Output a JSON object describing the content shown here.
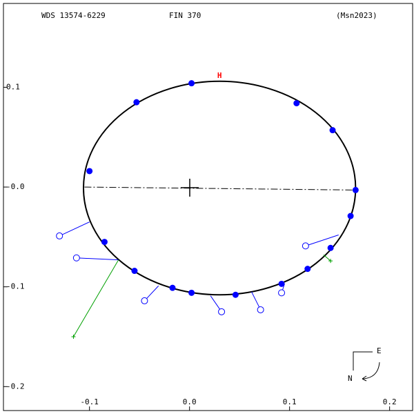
{
  "chart_data": {
    "type": "orbit",
    "title": "WDS 13574-6229",
    "subtitle": "FIN 370",
    "reference": "(Msn2023)",
    "periastron_label": "H",
    "compass": {
      "east": "E",
      "north": "N"
    },
    "xlim": [
      -0.186,
      0.223
    ],
    "ylim": [
      -0.224,
      0.184
    ],
    "xticks": [
      -0.1,
      {
        "value": 0,
        "label": "0.0"
      },
      0.1,
      0.2
    ],
    "yticks": [
      0.1,
      {
        "value": 0,
        "label": "-0.0"
      },
      -0.1,
      -0.2
    ],
    "orbit": {
      "center_x": 0.03,
      "center_y": -0.001,
      "semi_x": 0.136,
      "semi_y": 0.107,
      "color": "#000000"
    },
    "line_of_nodes": {
      "x": [
        -0.105,
        0.166
      ],
      "y": [
        0.0,
        -0.003
      ]
    },
    "positions": {
      "color": "#0000ff",
      "x": [
        0.002,
        -0.053,
        0.107,
        0.143,
        -0.1,
        0.166,
        0.161,
        0.141,
        0.118,
        0.092,
        0.046,
        0.002,
        -0.017,
        -0.055,
        -0.085
      ],
      "y": [
        0.104,
        0.085,
        0.084,
        0.057,
        0.016,
        -0.003,
        -0.029,
        -0.061,
        -0.082,
        -0.097,
        -0.108,
        -0.106,
        -0.101,
        -0.084,
        -0.055
      ]
    },
    "observations": {
      "color": "#0000ff",
      "x": [
        -0.13,
        -0.113,
        -0.045,
        0.032,
        0.071,
        0.092,
        0.116
      ],
      "y": [
        -0.049,
        -0.071,
        -0.114,
        -0.125,
        -0.123,
        -0.106,
        -0.059
      ],
      "fit_x": [
        -0.1,
        -0.071,
        -0.031,
        0.021,
        0.062,
        0.095,
        0.149
      ],
      "fit_y": [
        -0.035,
        -0.073,
        -0.099,
        -0.109,
        -0.105,
        -0.097,
        -0.048
      ]
    },
    "observations_alt": {
      "color": "#00a000",
      "x": [
        -0.116,
        0.141
      ],
      "y": [
        -0.15,
        -0.074
      ],
      "fit_x": [
        -0.071,
        0.134
      ],
      "fit_y": [
        -0.073,
        -0.068
      ]
    }
  }
}
